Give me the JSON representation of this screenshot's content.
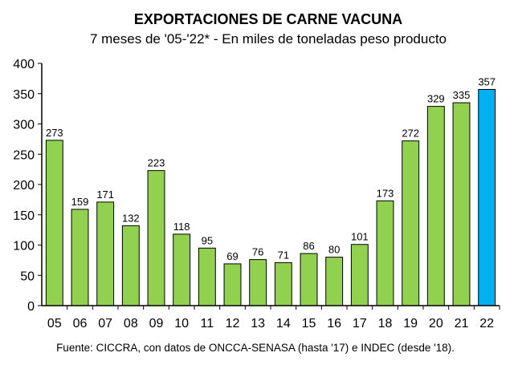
{
  "chart_data": {
    "type": "bar",
    "title": "EXPORTACIONES DE CARNE VACUNA",
    "subtitle": "7 meses de '05-'22* - En miles de toneladas peso producto",
    "xlabel": "",
    "ylabel": "",
    "categories": [
      "05",
      "06",
      "07",
      "08",
      "09",
      "10",
      "11",
      "12",
      "13",
      "14",
      "15",
      "16",
      "17",
      "18",
      "19",
      "20",
      "21",
      "22"
    ],
    "values": [
      273,
      159,
      171,
      132,
      223,
      118,
      95,
      69,
      76,
      71,
      86,
      80,
      101,
      173,
      272,
      329,
      335,
      357
    ],
    "ylim": [
      0,
      400
    ],
    "yticks": [
      0,
      50,
      100,
      150,
      200,
      250,
      300,
      350,
      400
    ],
    "grid": false,
    "legend": "none",
    "colors": {
      "bar": "#92d050",
      "highlight_bar": "#00b0f0",
      "bar_outline": "#000000",
      "axis": "#000000"
    },
    "highlight_category": "22",
    "source": "Fuente: CICCRA, con datos de ONCCA-SENASA (hasta '17) e INDEC (desde '18)."
  }
}
